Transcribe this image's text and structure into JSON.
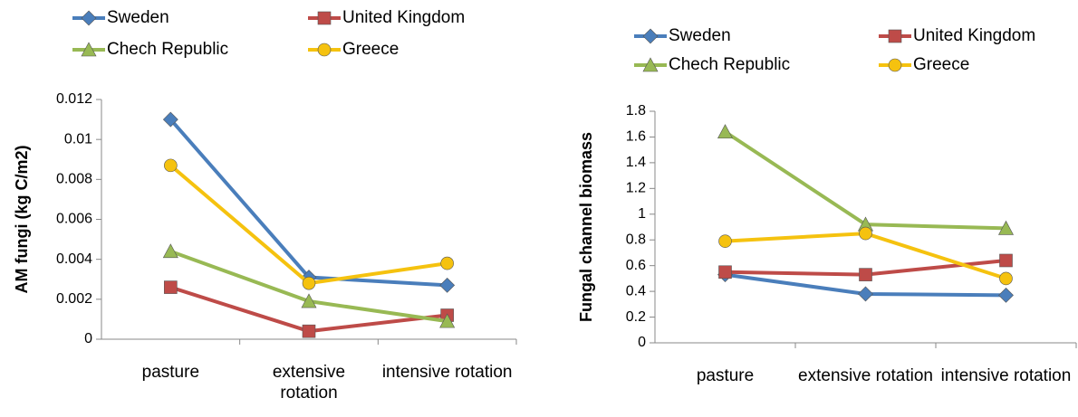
{
  "chart_data": [
    {
      "type": "line",
      "y_label": "AM fungi (kg C/m2)",
      "categories": [
        "pasture",
        "extensive rotation",
        "intensive rotation"
      ],
      "ylim": [
        0,
        0.012
      ],
      "yticks": [
        0,
        0.002,
        0.004,
        0.006,
        0.008,
        0.01,
        0.012
      ],
      "series": [
        {
          "name": "Sweden",
          "color": "#4a7ebb",
          "marker": "diamond",
          "values": [
            0.011,
            0.0031,
            0.0027
          ]
        },
        {
          "name": "United Kingdom",
          "color": "#be4b48",
          "marker": "square",
          "values": [
            0.0026,
            0.0004,
            0.0012
          ]
        },
        {
          "name": "Chech Republic",
          "color": "#98b954",
          "marker": "triangle",
          "values": [
            0.0044,
            0.0019,
            0.0009
          ]
        },
        {
          "name": "Greece",
          "color": "#f5c20f",
          "marker": "circle",
          "values": [
            0.0087,
            0.0028,
            0.0038
          ]
        }
      ]
    },
    {
      "type": "line",
      "y_label": "Fungal channel biomass",
      "categories": [
        "pasture",
        "extensive rotation",
        "intensive rotation"
      ],
      "ylim": [
        0,
        1.8
      ],
      "yticks": [
        0,
        0.2,
        0.4,
        0.6,
        0.8,
        1,
        1.2,
        1.4,
        1.6,
        1.8
      ],
      "series": [
        {
          "name": "Sweden",
          "color": "#4a7ebb",
          "marker": "diamond",
          "values": [
            0.53,
            0.38,
            0.37
          ]
        },
        {
          "name": "United Kingdom",
          "color": "#be4b48",
          "marker": "square",
          "values": [
            0.55,
            0.53,
            0.64
          ]
        },
        {
          "name": "Chech Republic",
          "color": "#98b954",
          "marker": "triangle",
          "values": [
            1.64,
            0.92,
            0.89
          ]
        },
        {
          "name": "Greece",
          "color": "#f5c20f",
          "marker": "circle",
          "values": [
            0.79,
            0.85,
            0.5
          ]
        }
      ]
    }
  ]
}
